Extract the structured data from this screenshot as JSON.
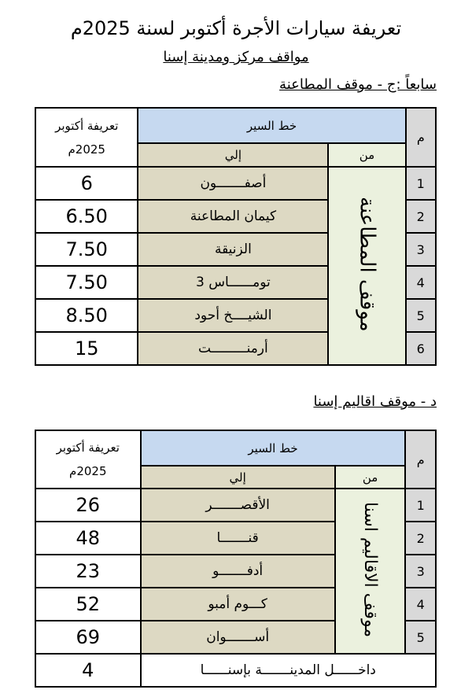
{
  "title": "تعريفة سيارات الأجرة أكتوبر لسنة 2025م",
  "subtitle": "مواقف مركز ومدينة إسنا",
  "table_headers": {
    "num": "م",
    "route": "خط السير",
    "from": "من",
    "to": "إلي",
    "price_line1": "تعريفة أكتوبر",
    "price_line2": "2025م"
  },
  "section1": {
    "heading": "سابعاً :ج - موقف المطاعنة",
    "from": "موقف المطاعنة",
    "rows": [
      {
        "num": "1",
        "to": "أصفـــــــون",
        "price": "6"
      },
      {
        "num": "2",
        "to": "كيمان المطاعنة",
        "price": "6.50"
      },
      {
        "num": "3",
        "to": "الزنيقة",
        "price": "7.50"
      },
      {
        "num": "4",
        "to": "تومــــــاس 3",
        "price": "7.50"
      },
      {
        "num": "5",
        "to": "الشيــــخ أحود",
        "price": "8.50"
      },
      {
        "num": "6",
        "to": "أرمنـــــــــت",
        "price": "15"
      }
    ]
  },
  "section2": {
    "heading": "د - موقف اقاليم إسنا",
    "from": "موقف الاقاليم اسنا",
    "rows": [
      {
        "num": "1",
        "to": "الأقصـــــــر",
        "price": "26"
      },
      {
        "num": "2",
        "to": "قنـــــــا",
        "price": "48"
      },
      {
        "num": "3",
        "to": "أدفـــــــو",
        "price": "23"
      },
      {
        "num": "4",
        "to": "كـــوم أمبو",
        "price": "52"
      },
      {
        "num": "5",
        "to": "أســـــــوان",
        "price": "69"
      }
    ],
    "footer": {
      "to": "داخــــــل المدينـــــــة بإسنــــــا",
      "price": "4"
    }
  }
}
